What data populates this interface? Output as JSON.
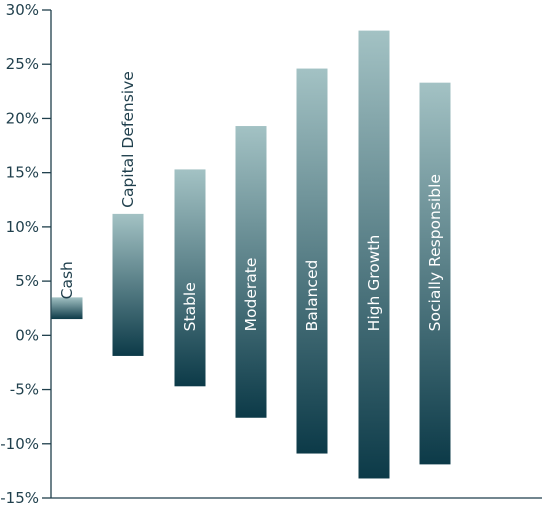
{
  "chart_data": {
    "type": "bar",
    "subtype": "floating-range",
    "title": "",
    "xlabel": "",
    "ylabel": "",
    "ylim": [
      -15,
      30
    ],
    "y_ticks": [
      "30%",
      "25%",
      "20%",
      "15%",
      "10%",
      "5%",
      "0%",
      "-5%",
      "-10%",
      "-15%"
    ],
    "y_tick_values": [
      30,
      25,
      20,
      15,
      10,
      5,
      0,
      -5,
      -10,
      -15
    ],
    "grid": false,
    "legend": "none",
    "categories": [
      "Cash",
      "Capital Defensive",
      "Stable",
      "Moderate",
      "Balanced",
      "High Growth",
      "Socially Responsible"
    ],
    "bars": [
      {
        "label": "Cash",
        "high": 3.5,
        "low": 1.5
      },
      {
        "label": "Capital Defensive",
        "high": 11.2,
        "low": -1.9
      },
      {
        "label": "Stable",
        "high": 15.3,
        "low": -4.7
      },
      {
        "label": "Moderate",
        "high": 19.3,
        "low": -7.6
      },
      {
        "label": "Balanced",
        "high": 24.6,
        "low": -10.9
      },
      {
        "label": "High Growth",
        "high": 28.1,
        "low": -13.2
      },
      {
        "label": "Socially Responsible",
        "high": 23.3,
        "low": -11.9
      }
    ],
    "colors": {
      "bar_top": "#a3c2c4",
      "bar_bottom": "#0c3a48",
      "axis": "#1f3f4c",
      "text": "#1f3f4c"
    }
  }
}
